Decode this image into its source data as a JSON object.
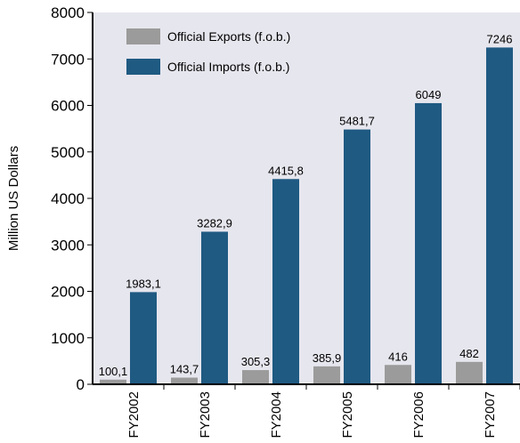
{
  "chart_data": {
    "type": "bar",
    "title": "",
    "xlabel": "",
    "ylabel": "Million US Dollars",
    "ylim": [
      0,
      8000
    ],
    "yticks": [
      0,
      1000,
      2000,
      3000,
      4000,
      5000,
      6000,
      7000,
      8000
    ],
    "grid": false,
    "legend_position": "top-left",
    "categories": [
      "FY2002",
      "FY2003",
      "FY2004",
      "FY2005",
      "FY2006",
      "FY2007"
    ],
    "series": [
      {
        "name": "Official Exports (f.o.b.)",
        "color": "#9b9b9b",
        "values": [
          100.1,
          143.7,
          305.3,
          385.9,
          416,
          482
        ],
        "labels": [
          "100,1",
          "143,7",
          "305,3",
          "385,9",
          "416",
          "482"
        ]
      },
      {
        "name": "Official Imports (f.o.b.)",
        "color": "#1f5a82",
        "values": [
          1983.1,
          3282.9,
          4415.8,
          5481.7,
          6049,
          7246
        ],
        "labels": [
          "1983,1",
          "3282,9",
          "4415,8",
          "5481,7",
          "6049",
          "7246"
        ]
      }
    ],
    "plot_background": "#e6e6ee"
  }
}
